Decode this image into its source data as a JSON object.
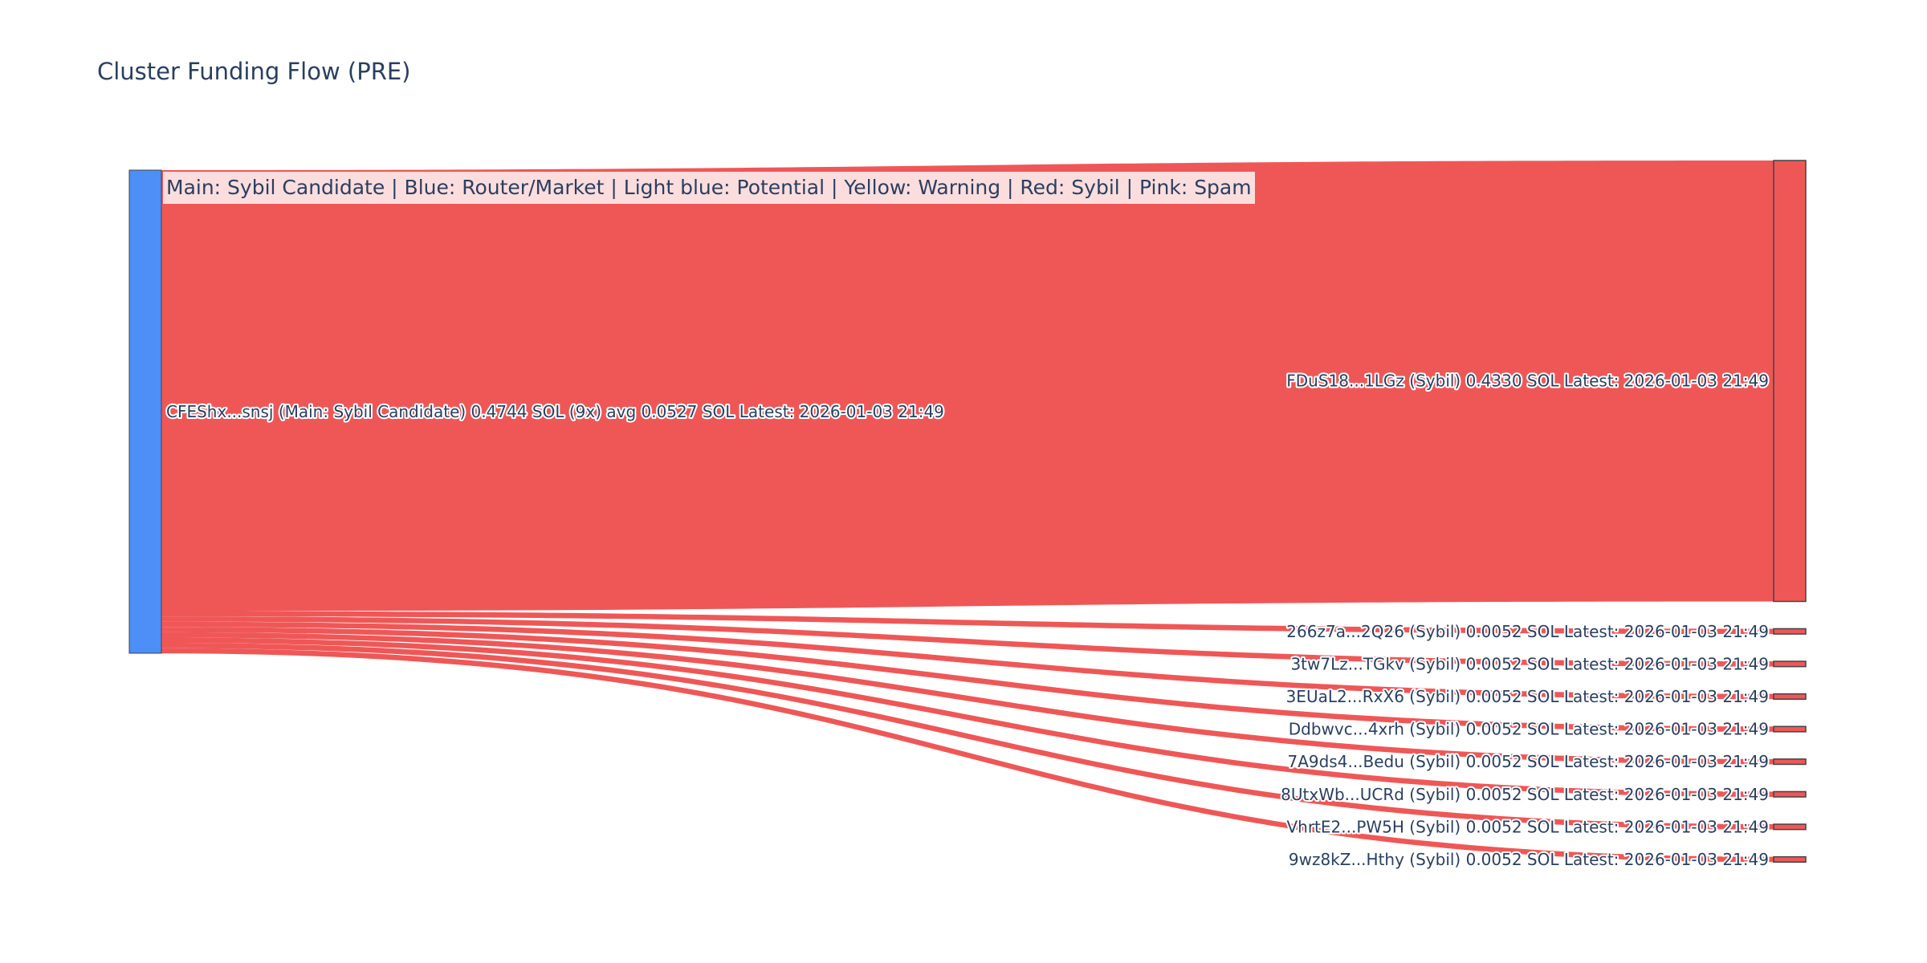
{
  "chart_data": {
    "type": "sankey",
    "title": "Cluster Funding Flow (PRE)",
    "annotation": "Main: Sybil Candidate  |  Blue: Router/Market | Light blue: Potential | Yellow: Warning | Red: Sybil | Pink: Spam",
    "colors": {
      "source_node": "#4d8ef7",
      "sybil": "#ef5757",
      "link": "#ef5757",
      "node_border": "#444444"
    },
    "source": {
      "label": "CFEShx...snsj (Main: Sybil Candidate) 0.4744 SOL (9x) avg 0.0527 SOL Latest: 2026-01-03 21:49",
      "value": 0.4744,
      "category": "source"
    },
    "targets": [
      {
        "label": "FDuS18...1LGz (Sybil) 0.4330 SOL Latest: 2026-01-03 21:49",
        "value": 0.433,
        "category": "sybil"
      },
      {
        "label": "266z7a...2Q26 (Sybil) 0.0052 SOL Latest: 2026-01-03 21:49",
        "value": 0.0052,
        "category": "sybil"
      },
      {
        "label": "3tw7Lz...TGkv (Sybil) 0.0052 SOL Latest: 2026-01-03 21:49",
        "value": 0.0052,
        "category": "sybil"
      },
      {
        "label": "3EUaL2...RxX6 (Sybil) 0.0052 SOL Latest: 2026-01-03 21:49",
        "value": 0.0052,
        "category": "sybil"
      },
      {
        "label": "Ddbwvc...4xrh (Sybil) 0.0052 SOL Latest: 2026-01-03 21:49",
        "value": 0.0052,
        "category": "sybil"
      },
      {
        "label": "7A9ds4...Bedu (Sybil) 0.0052 SOL Latest: 2026-01-03 21:49",
        "value": 0.0052,
        "category": "sybil"
      },
      {
        "label": "8UtxWb...UCRd (Sybil) 0.0052 SOL Latest: 2026-01-03 21:49",
        "value": 0.0052,
        "category": "sybil"
      },
      {
        "label": "VhrtE2...PW5H (Sybil) 0.0052 SOL Latest: 2026-01-03 21:49",
        "value": 0.0052,
        "category": "sybil"
      },
      {
        "label": "9wz8kZ...Hthy (Sybil) 0.0052 SOL Latest: 2026-01-03 21:49",
        "value": 0.0052,
        "category": "sybil"
      }
    ]
  }
}
